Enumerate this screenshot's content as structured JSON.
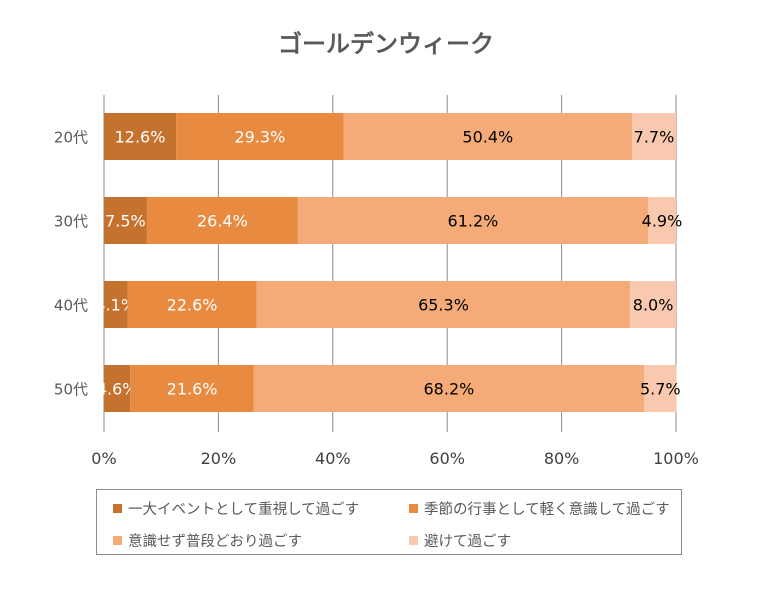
{
  "chart_data": {
    "type": "bar",
    "orientation": "horizontal-stacked-100",
    "title": "ゴールデンウィーク",
    "categories": [
      "20代",
      "30代",
      "40代",
      "50代"
    ],
    "series": [
      {
        "name": "一大イベントとして重視して過ごす",
        "color": "#C5722F",
        "label_color": "#ffffff",
        "values": [
          12.6,
          7.5,
          4.1,
          4.6
        ]
      },
      {
        "name": "季節の行事として軽く意識して過ごす",
        "color": "#E88A40",
        "label_color": "#ffffff",
        "values": [
          29.3,
          26.4,
          22.6,
          21.6
        ]
      },
      {
        "name": "意識せず普段どおり過ごす",
        "color": "#F5AB78",
        "label_color": "#000000",
        "values": [
          50.4,
          61.2,
          65.3,
          68.2
        ]
      },
      {
        "name": "避けて過ごす",
        "color": "#F8C9AE",
        "label_color": "#000000",
        "values": [
          7.7,
          4.9,
          8.0,
          5.7
        ]
      }
    ],
    "data_labels": [
      [
        "12.6%",
        "7.5%",
        "4.1%",
        "4.6%"
      ],
      [
        "29.3%",
        "26.4%",
        "22.6%",
        "21.6%"
      ],
      [
        "50.4%",
        "61.2%",
        "65.3%",
        "68.2%"
      ],
      [
        "7.7%",
        "4.9%",
        "8.0%",
        "5.7%"
      ]
    ],
    "xlim": [
      0,
      100
    ],
    "xticks": [
      "0%",
      "20%",
      "40%",
      "60%",
      "80%",
      "100%"
    ],
    "grid": true,
    "legend": "bottom"
  }
}
